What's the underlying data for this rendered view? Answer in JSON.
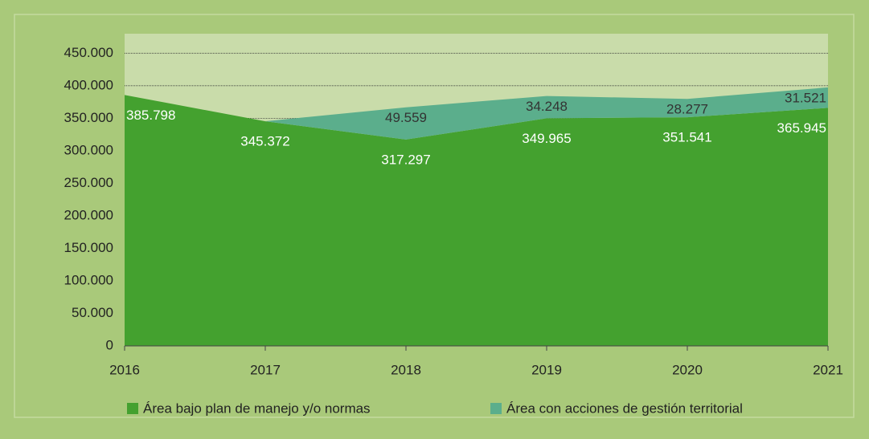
{
  "chart_data": {
    "type": "stacked_area",
    "categories": [
      "2016",
      "2017",
      "2018",
      "2019",
      "2020",
      "2021"
    ],
    "series": [
      {
        "name": "Área bajo plan de manejo y/o normas",
        "color": "#44a12f",
        "values": [
          385798,
          345372,
          317297,
          349965,
          351541,
          365945
        ],
        "value_labels": [
          "385.798",
          "345.372",
          "317.297",
          "349.965",
          "351.541",
          "365.945"
        ]
      },
      {
        "name": "Área con acciones de gestión territorial",
        "color": "#5bae8c",
        "values": [
          null,
          0,
          49559,
          34248,
          28277,
          31521
        ],
        "value_labels": [
          null,
          null,
          "49.559",
          "34.248",
          "28.277",
          "31.521"
        ]
      }
    ],
    "ylim": [
      0,
      480000
    ],
    "yticks": [
      0,
      {
        "value": 50000,
        "label": "50.000"
      },
      {
        "value": 100000,
        "label": "100.000"
      },
      {
        "value": 150000,
        "label": "150.000"
      },
      {
        "value": 200000,
        "label": "200.000"
      },
      {
        "value": 250000,
        "label": "250.000"
      },
      {
        "value": 300000,
        "label": "300.000"
      },
      {
        "value": 350000,
        "label": "350.000"
      },
      {
        "value": 400000,
        "label": "400.000"
      },
      {
        "value": 450000,
        "label": "450.000"
      }
    ],
    "grid": true,
    "legend": "bottom"
  }
}
